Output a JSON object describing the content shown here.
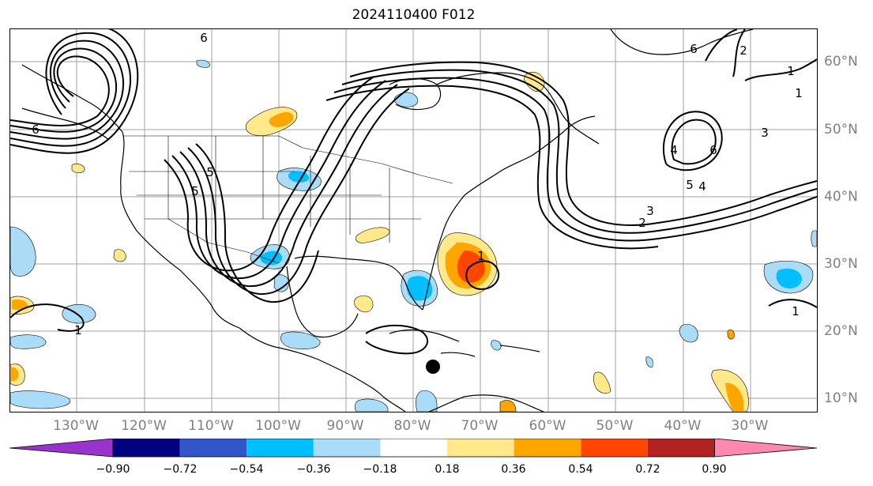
{
  "title": "2024110400 F012",
  "longitude_labels": [
    "130°W",
    "120°W",
    "110°W",
    "100°W",
    "90°W",
    "80°W",
    "70°W",
    "60°W",
    "50°W",
    "40°W",
    "30°W"
  ],
  "latitude_labels": [
    "60°N",
    "50°N",
    "40°N",
    "30°N",
    "20°N",
    "10°N"
  ],
  "colorbar": {
    "colors": [
      "#9933cc",
      "#000080",
      "#3355cc",
      "#00bfff",
      "#aadcf8",
      "#ffffff",
      "#ffe98a",
      "#ffa500",
      "#ff4500",
      "#b22222",
      "#ff88b0"
    ],
    "labels": [
      "−0.90",
      "−0.72",
      "−0.54",
      "−0.36",
      "−0.18",
      "0.18",
      "0.36",
      "0.54",
      "0.72",
      "0.90"
    ]
  },
  "contour_labels": [
    "6",
    "6",
    "5",
    "5",
    "6",
    "4",
    "2",
    "3",
    "5",
    "6",
    "4",
    "2",
    "3",
    "1",
    "1",
    "1",
    "1",
    "1"
  ],
  "marker": "black-dot"
}
